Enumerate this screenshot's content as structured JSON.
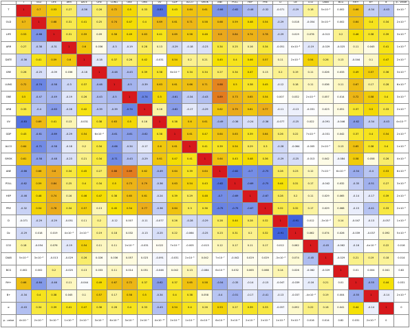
{
  "chart_data": {
    "type": "heatmap",
    "title": "",
    "labels": [
      "T",
      "OLD",
      "LIFE",
      "ARR",
      "DATE",
      "GRE",
      "LUNG",
      "OBE",
      "URB",
      "UV",
      "GDP",
      "ALCO",
      "SMOK",
      "ANE",
      "POLL",
      "HEP",
      "PRE",
      "D",
      "Dc",
      "CO2",
      "DIAB",
      "BCG",
      "RH+",
      "B+",
      "α"
    ],
    "column_labels": [
      "T",
      "OLD",
      "LIFE",
      "ARR",
      "DATE",
      "GRE",
      "LUNG",
      "OBE",
      "URB",
      "UV",
      "GDP",
      "ALCO",
      "SMOK",
      "ANE",
      "POLL",
      "HEP",
      "PRE",
      "D",
      "Dc",
      "CO2",
      "DIAB",
      "BCG",
      "RH+",
      "B+",
      "α",
      "p - value"
    ],
    "row_labels": [
      "T",
      "OLD",
      "LIFE",
      "ARR",
      "DATE",
      "GRE",
      "LUNG",
      "OBE",
      "URB",
      "UV",
      "GDP",
      "ALCO",
      "SMOK",
      "ANE",
      "POLL",
      "HEP",
      "PRE",
      "D",
      "Dc",
      "CO2",
      "DIAB",
      "BCG",
      "RH+",
      "B+",
      "α",
      "p - value"
    ],
    "matrix": [
      [
        1,
        0.7,
        0.53,
        0.27,
        -0.36,
        0.26,
        0.72,
        0.5,
        0.33,
        -0.83,
        0.43,
        0.64,
        0.61,
        -0.66,
        -0.62,
        -0.46,
        -0.32,
        -0.071,
        -0.29,
        0.18,
        0.0005,
        0.002,
        0.66,
        -0.34,
        -0.43
      ],
      [
        0.7,
        1,
        0.68,
        0.31,
        0.41,
        0.25,
        0.74,
        0.47,
        0.4,
        0.69,
        0.61,
        0.71,
        0.58,
        0.68,
        0.59,
        0.48,
        0.54,
        -0.29,
        0.018,
        -0.054,
        0.0003,
        0.002,
        0.64,
        0.4,
        0.34
      ],
      [
        0.53,
        -0.68,
        1,
        0.31,
        0.59,
        0.09,
        0.58,
        0.49,
        0.63,
        0.41,
        0.69,
        0.58,
        0.48,
        0.8,
        0.84,
        0.74,
        0.78,
        -0.29,
        0.019,
        0.076,
        -0.013,
        0.2,
        0.46,
        0.38,
        0.39
      ],
      [
        0.27,
        -0.38,
        -0.31,
        1,
        0.6,
        0.036,
        -0.3,
        -0.19,
        0.28,
        0.13,
        -0.29,
        -0.18,
        -0.23,
        0.34,
        0.25,
        0.16,
        0.34,
        -0.051,
        0.0004,
        -0.19,
        -0.029,
        -0.025,
        0.11,
        0.045,
        0.41
      ],
      [
        -0.36,
        0.41,
        0.59,
        0.6,
        1,
        -0.18,
        0.37,
        0.26,
        0.42,
        -0.031,
        0.54,
        0.2,
        0.21,
        0.45,
        0.4,
        0.46,
        0.57,
        0.11,
        2e-05,
        0.54,
        0.26,
        0.13,
        -0.044,
        0.1,
        0.47
      ],
      [
        0.26,
        -0.25,
        -0.09,
        0.036,
        -0.18,
        1,
        -0.48,
        -0.43,
        0.39,
        0.38,
        0.0006,
        0.34,
        0.34,
        0.27,
        0.34,
        0.47,
        0.13,
        0.2,
        0.19,
        0.11,
        0.026,
        0.033,
        0.49,
        0.57,
        0.36
      ],
      [
        0.72,
        -0.74,
        -0.58,
        -0.3,
        0.37,
        -0.48,
        1,
        -0.5,
        -0.39,
        0.63,
        0.61,
        0.66,
        0.71,
        0.88,
        0.5,
        0.38,
        0.45,
        -0.12,
        0.18,
        0.11,
        0.036,
        0.11,
        0.67,
        0.17,
        0.28
      ],
      [
        0.5,
        -0.47,
        -0.49,
        -0.19,
        0.26,
        -0.43,
        -0.5,
        1,
        -0.74,
        0.5,
        -0.61,
        -0.34,
        -0.43,
        0.89,
        0.73,
        0.65,
        0.54,
        0.007,
        0.032,
        0.0002,
        0.057,
        0.014,
        0.72,
        0.58,
        0.4
      ],
      [
        0.33,
        -0.4,
        -0.63,
        -0.28,
        0.42,
        -0.39,
        -0.39,
        -0.74,
        1,
        0.16,
        -0.62,
        -0.17,
        -0.29,
        0.62,
        0.79,
        0.61,
        0.77,
        -0.11,
        -0.13,
        -0.031,
        0.023,
        0.051,
        0.37,
        0.5,
        0.33
      ],
      [
        -0.83,
        0.69,
        0.41,
        0.13,
        -0.031,
        0.38,
        0.63,
        0.5,
        0.16,
        1,
        0.38,
        0.6,
        0.61,
        -0.49,
        -0.36,
        -0.24,
        -0.36,
        -0.077,
        -0.25,
        0.022,
        -0.091,
        -0.046,
        -0.62,
        -0.34,
        -0.43
      ],
      [
        0.43,
        -0.61,
        -0.69,
        -0.29,
        0.54,
        0.0006,
        -0.61,
        -0.61,
        -0.62,
        0.38,
        1,
        0.61,
        0.47,
        0.64,
        0.63,
        0.39,
        0.64,
        0.26,
        0.22,
        0.0007,
        -0.031,
        0.042,
        0.37,
        0.4,
        0.54
      ],
      [
        0.64,
        -0.71,
        -0.58,
        -0.18,
        0.2,
        0.34,
        -0.66,
        -0.34,
        -0.17,
        0.6,
        0.61,
        1,
        0.41,
        0.39,
        0.54,
        0.29,
        0.3,
        -0.28,
        -0.064,
        -0.005,
        2e-05,
        0.13,
        0.65,
        0.38,
        0.4
      ],
      [
        0.61,
        -0.58,
        -0.48,
        -0.23,
        0.21,
        0.34,
        -0.71,
        -0.43,
        -0.29,
        0.61,
        0.47,
        0.41,
        1,
        0.64,
        0.43,
        0.48,
        0.36,
        -0.29,
        -0.25,
        -0.013,
        0.042,
        -0.084,
        0.58,
        0.058,
        0.26
      ],
      [
        -0.66,
        0.68,
        0.8,
        0.34,
        0.45,
        0.27,
        0.88,
        0.89,
        0.62,
        -0.49,
        0.64,
        0.39,
        0.64,
        1,
        -0.82,
        -0.7,
        -0.75,
        0.28,
        0.23,
        0.12,
        7e-07,
        0.0006,
        -0.54,
        -0.4,
        0.53
      ],
      [
        -0.62,
        0.59,
        0.84,
        0.25,
        0.4,
        0.34,
        0.5,
        0.73,
        0.79,
        -0.36,
        0.63,
        0.54,
        0.43,
        -0.82,
        1,
        -0.69,
        -0.75,
        0.44,
        0.31,
        0.17,
        -0.042,
        0.032,
        -0.35,
        -0.51,
        0.27
      ],
      [
        -0.46,
        0.48,
        0.74,
        0.16,
        0.46,
        0.47,
        0.38,
        0.65,
        0.61,
        -0.24,
        0.39,
        0.29,
        0.48,
        -0.7,
        -0.69,
        1,
        -0.67,
        0.28,
        0.2,
        0.11,
        0.029,
        0.065,
        -0.14,
        -0.17,
        0.39
      ],
      [
        -0.32,
        0.54,
        0.78,
        0.34,
        0.57,
        0.13,
        0.45,
        0.54,
        0.77,
        -0.36,
        0.64,
        0.3,
        0.36,
        -0.75,
        -0.75,
        -0.67,
        1,
        0.32,
        0.32,
        0.17,
        0.029,
        0.068,
        -0.15,
        -0.41,
        0.33
      ],
      [
        -0.071,
        -0.29,
        -0.29,
        -0.051,
        0.11,
        0.2,
        -0.12,
        0.007,
        -0.11,
        -0.077,
        0.26,
        -0.28,
        -0.29,
        0.28,
        0.44,
        0.28,
        0.32,
        1,
        -0.91,
        0.012,
        -0.0003,
        0.14,
        -0.047,
        -0.13,
        -0.057
      ],
      [
        -0.29,
        0.018,
        0.019,
        0.0004,
        2e-05,
        0.19,
        0.18,
        0.032,
        -0.13,
        -0.25,
        0.22,
        -0.064,
        -0.25,
        0.23,
        0.31,
        0.2,
        0.32,
        -0.91,
        1,
        0.062,
        0.074,
        0.026,
        -0.039,
        -0.037,
        0.092
      ],
      [
        0.18,
        -0.054,
        0.076,
        -0.19,
        0.54,
        0.11,
        0.11,
        0.0002,
        -0.031,
        0.022,
        0.0007,
        -0.005,
        -0.013,
        0.12,
        0.17,
        0.11,
        0.17,
        0.012,
        0.062,
        1,
        -0.45,
        -0.062,
        -0.16,
        -0.0004,
        0.22
      ],
      [
        0.0005,
        0.0003,
        -0.013,
        -0.029,
        0.26,
        0.026,
        0.036,
        0.057,
        0.023,
        -0.091,
        -0.031,
        2e-05,
        0.042,
        7e-07,
        -0.042,
        0.029,
        0.029,
        -0.0003,
        0.074,
        -0.45,
        1,
        -0.029,
        0.21,
        0.19,
        0.18
      ],
      [
        0.002,
        0.002,
        0.2,
        -0.025,
        0.13,
        0.033,
        0.11,
        0.014,
        0.051,
        -0.046,
        0.042,
        0.13,
        -0.084,
        0.0006,
        0.032,
        0.065,
        0.068,
        0.14,
        0.026,
        -0.062,
        -0.029,
        1,
        0.01,
        0.004,
        0.041
      ],
      [
        0.66,
        -0.64,
        -0.46,
        0.11,
        -0.044,
        0.49,
        0.67,
        0.72,
        0.37,
        -0.62,
        0.37,
        0.65,
        0.58,
        -0.54,
        -0.35,
        -0.14,
        -0.15,
        -0.047,
        -0.039,
        -0.16,
        0.21,
        0.01,
        1,
        -0.55,
        0.44
      ],
      [
        -0.34,
        0.4,
        0.38,
        0.045,
        0.1,
        0.57,
        0.17,
        0.58,
        0.5,
        -0.34,
        0.4,
        0.38,
        0.058,
        -0.4,
        -0.51,
        -0.17,
        -0.41,
        -0.13,
        -0.037,
        -0.0004,
        0.19,
        0.004,
        -0.55,
        1,
        -0.14
      ],
      [
        -0.43,
        0.34,
        0.39,
        0.41,
        0.47,
        0.36,
        0.28,
        0.4,
        0.33,
        -0.43,
        0.54,
        0.4,
        0.26,
        0.53,
        0.27,
        0.39,
        0.33,
        -0.057,
        0.092,
        0.22,
        0.18,
        0.041,
        0.44,
        -0.14,
        1
      ]
    ],
    "p_values": [
      "4×10⁻⁷",
      "2×10⁻⁵",
      "3×10⁻⁸",
      "1×10⁻⁸",
      "2×10⁻⁵",
      "3×10⁻⁵",
      "6×10⁻⁶",
      "3×10⁻⁵",
      "2×10⁻⁵",
      "4×10⁻¹⁰",
      "2×10⁻⁶",
      "1×10⁻⁹",
      "4×10⁻⁹",
      "6×10⁻⁸",
      "3×10⁻⁶",
      "2×10⁻⁵",
      "2×10⁻⁵",
      "1×10⁻⁴",
      "5×10⁻⁴",
      "0.016",
      "0.014",
      "0.82",
      "0.031",
      "2×10⁻⁴",
      "0"
    ],
    "color_scale": {
      "low": "#2b50d8",
      "mid": "#ffffff",
      "high_1": "#f5e000",
      "high_2": "#e8a020",
      "max": "#d7191c"
    }
  }
}
